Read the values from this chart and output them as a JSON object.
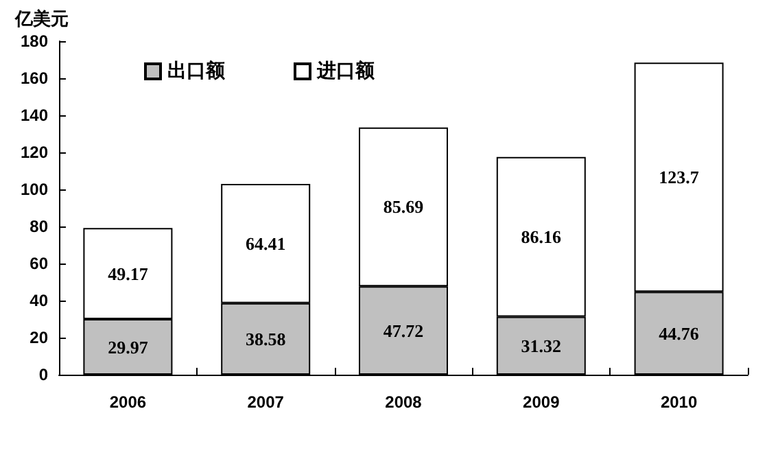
{
  "chart_data": {
    "type": "bar",
    "stacked": true,
    "ylabel": "亿美元",
    "categories": [
      "2006",
      "2007",
      "2008",
      "2009",
      "2010"
    ],
    "series": [
      {
        "name": "出口额",
        "color": "#c0c0c0",
        "values": [
          29.97,
          38.58,
          47.72,
          31.32,
          44.76
        ]
      },
      {
        "name": "进口额",
        "color": "#ffffff",
        "values": [
          49.17,
          64.41,
          85.69,
          86.16,
          123.7
        ]
      }
    ],
    "ylim": [
      0,
      180
    ],
    "yticks": [
      0,
      20,
      40,
      60,
      80,
      100,
      120,
      140,
      160,
      180
    ],
    "grid": false,
    "legend": "top left",
    "data_labels": true
  }
}
